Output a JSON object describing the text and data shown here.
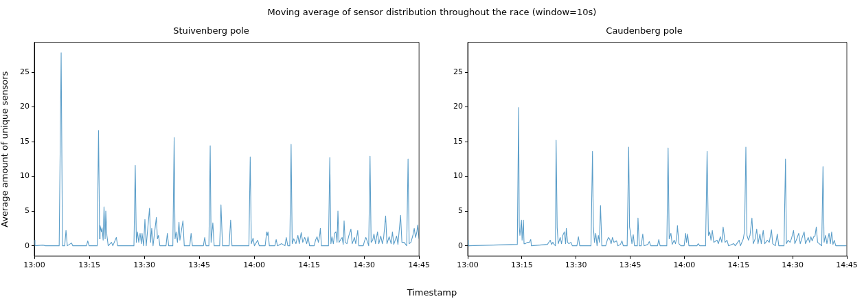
{
  "chart_data": [
    {
      "type": "line",
      "title": "Stuivenberg pole",
      "ylabel": "Average amount of unique sensors",
      "xlabel": "Timestamp",
      "annotations": [
        "Moving average of sensor distribution throughout the race (window=10s)"
      ],
      "xlim": [
        13,
        14.75
      ],
      "xticks": [
        {
          "value": 13,
          "label": "13:00"
        },
        {
          "value": 13.25,
          "label": "13:15"
        },
        {
          "value": 13.5,
          "label": "13:30"
        },
        {
          "value": 13.75,
          "label": "13:45"
        },
        {
          "value": 14,
          "label": "14:00"
        },
        {
          "value": 14.25,
          "label": "14:15"
        },
        {
          "value": 14.5,
          "label": "14:30"
        },
        {
          "value": 14.75,
          "label": "14:45"
        }
      ],
      "ylim": [
        -1.5,
        29.3
      ],
      "yticks": [
        0,
        5,
        10,
        15,
        20,
        25
      ],
      "grid": false,
      "legend": false,
      "marker": "none",
      "line_style": "solid",
      "series": [
        {
          "color": "#5b9ec9",
          "x": [
            13.0,
            13.003,
            13.039,
            13.051,
            13.113,
            13.122,
            13.128,
            13.138,
            13.144,
            13.15,
            13.169,
            13.175,
            13.237,
            13.243,
            13.249,
            13.286,
            13.292,
            13.297,
            13.299,
            13.305,
            13.308,
            13.313,
            13.317,
            13.322,
            13.325,
            13.33,
            13.336,
            13.351,
            13.357,
            13.373,
            13.379,
            13.453,
            13.459,
            13.464,
            13.469,
            13.475,
            13.481,
            13.487,
            13.49,
            13.497,
            13.503,
            13.509,
            13.524,
            13.529,
            13.534,
            13.54,
            13.555,
            13.56,
            13.565,
            13.571,
            13.599,
            13.605,
            13.611,
            13.63,
            13.636,
            13.64,
            13.645,
            13.651,
            13.658,
            13.662,
            13.676,
            13.682,
            13.707,
            13.713,
            13.719,
            13.769,
            13.775,
            13.781,
            13.794,
            13.8,
            13.804,
            13.812,
            13.818,
            13.843,
            13.849,
            13.856,
            13.886,
            13.893,
            13.899,
            13.976,
            13.982,
            13.987,
            13.995,
            14.001,
            14.016,
            14.023,
            14.05,
            14.057,
            14.06,
            14.063,
            14.069,
            14.094,
            14.1,
            14.106,
            14.125,
            14.14,
            14.146,
            14.153,
            14.162,
            14.168,
            14.173,
            14.18,
            14.19,
            14.199,
            14.205,
            14.214,
            14.221,
            14.23,
            14.239,
            14.245,
            14.252,
            14.273,
            14.279,
            14.286,
            14.292,
            14.298,
            14.301,
            14.306,
            14.338,
            14.344,
            14.349,
            14.354,
            14.36,
            14.366,
            14.372,
            14.377,
            14.381,
            14.386,
            14.4,
            14.405,
            14.409,
            14.414,
            14.422,
            14.431,
            14.44,
            14.446,
            14.456,
            14.462,
            14.471,
            14.476,
            14.496,
            14.502,
            14.508,
            14.515,
            14.521,
            14.527,
            14.532,
            14.539,
            14.545,
            14.552,
            14.561,
            14.567,
            14.576,
            14.583,
            14.589,
            14.598,
            14.604,
            14.614,
            14.623,
            14.629,
            14.635,
            14.648,
            14.654,
            14.666,
            14.672,
            14.682,
            14.694,
            14.7,
            14.705,
            14.713,
            14.722,
            14.728,
            14.734,
            14.74,
            14.744,
            14.75
          ],
          "values": [
            0.8,
            0,
            0.1,
            0,
            0,
            27.8,
            0,
            0,
            2.2,
            0,
            0.4,
            0,
            0,
            0.7,
            0,
            0,
            16.6,
            1,
            2.9,
            2,
            2.6,
            0.8,
            5.6,
            1,
            5,
            1.5,
            0,
            0.5,
            0,
            1.2,
            0,
            0,
            11.6,
            0.5,
            2,
            0.5,
            1.8,
            0.3,
            1.8,
            0,
            3.8,
            0,
            5.4,
            0.5,
            2.5,
            0,
            4.1,
            1,
            1.5,
            0,
            0,
            1.8,
            0,
            0,
            15.6,
            1,
            2,
            0.5,
            3.4,
            0.8,
            3.6,
            0,
            0,
            1.8,
            0,
            0,
            1.2,
            0,
            0,
            14.4,
            0.5,
            3.3,
            0,
            0,
            5.9,
            0,
            0,
            3.7,
            0,
            0,
            12.8,
            0.3,
            1.1,
            0,
            0.8,
            0,
            0,
            2,
            1.5,
            2,
            0,
            0,
            0.9,
            0,
            0.3,
            0,
            1.2,
            0,
            0,
            14.6,
            0.3,
            1,
            0.3,
            1.5,
            0.3,
            1.9,
            0.5,
            1.2,
            0.3,
            1.3,
            0,
            0,
            0.8,
            1.3,
            0.5,
            1.5,
            2.5,
            0,
            0,
            12.7,
            0.3,
            1.3,
            0.3,
            1.8,
            2,
            0.5,
            5,
            0.5,
            1.2,
            0.2,
            3.6,
            0.5,
            0.3,
            1.5,
            2.4,
            0.3,
            1.2,
            0.3,
            2.2,
            0,
            0,
            0.7,
            1.2,
            0.6,
            0,
            12.9,
            0.5,
            0.8,
            1.7,
            0.3,
            2,
            0.3,
            1.4,
            0.3,
            1.2,
            4.3,
            0.3,
            1.3,
            0.3,
            2,
            0.2,
            1.4,
            0.2,
            4.4,
            0.5,
            0.5,
            0,
            12.5,
            0.3,
            0.5,
            1.5,
            2.5,
            1.2,
            2,
            3,
            1
          ]
        }
      ]
    },
    {
      "type": "line",
      "title": "Caudenberg pole",
      "xlim": [
        13,
        14.75
      ],
      "xticks": [
        {
          "value": 13,
          "label": "13:00"
        },
        {
          "value": 13.25,
          "label": "13:15"
        },
        {
          "value": 13.5,
          "label": "13:30"
        },
        {
          "value": 13.75,
          "label": "13:45"
        },
        {
          "value": 14,
          "label": "14:00"
        },
        {
          "value": 14.25,
          "label": "14:15"
        },
        {
          "value": 14.5,
          "label": "14:30"
        },
        {
          "value": 14.75,
          "label": "14:45"
        }
      ],
      "ylim": [
        -1.5,
        29.3
      ],
      "yticks": [
        0,
        5,
        10,
        15,
        20,
        25
      ],
      "grid": false,
      "legend": false,
      "marker": "none",
      "line_style": "solid",
      "series": [
        {
          "color": "#5b9ec9",
          "x": [
            13.0,
            13.003,
            13.229,
            13.235,
            13.238,
            13.241,
            13.248,
            13.251,
            13.257,
            13.26,
            13.266,
            13.275,
            13.285,
            13.291,
            13.294,
            13.368,
            13.381,
            13.387,
            13.393,
            13.399,
            13.405,
            13.408,
            13.413,
            13.418,
            13.427,
            13.433,
            13.439,
            13.446,
            13.452,
            13.455,
            13.461,
            13.467,
            13.476,
            13.483,
            13.504,
            13.511,
            13.517,
            13.569,
            13.576,
            13.58,
            13.585,
            13.591,
            13.597,
            13.603,
            13.608,
            13.613,
            13.619,
            13.637,
            13.644,
            13.65,
            13.656,
            13.662,
            13.668,
            13.675,
            13.687,
            13.693,
            13.705,
            13.712,
            13.718,
            13.736,
            13.743,
            13.747,
            13.752,
            13.758,
            13.764,
            13.77,
            13.783,
            13.786,
            13.792,
            13.801,
            13.808,
            13.814,
            13.832,
            13.838,
            13.845,
            13.876,
            13.882,
            13.888,
            13.919,
            13.925,
            13.93,
            13.938,
            13.944,
            13.953,
            13.959,
            13.965,
            13.968,
            13.975,
            13.984,
            13.999,
            14.006,
            14.01,
            14.015,
            14.021,
            14.058,
            14.064,
            14.071,
            14.098,
            14.105,
            14.111,
            14.117,
            14.123,
            14.129,
            14.136,
            14.151,
            14.157,
            14.166,
            14.173,
            14.179,
            14.188,
            14.197,
            14.204,
            14.228,
            14.235,
            14.253,
            14.259,
            14.272,
            14.278,
            14.284,
            14.289,
            14.296,
            14.303,
            14.312,
            14.318,
            14.327,
            14.334,
            14.34,
            14.349,
            14.355,
            14.364,
            14.371,
            14.383,
            14.392,
            14.402,
            14.408,
            14.42,
            14.429,
            14.436,
            14.46,
            14.467,
            14.471,
            14.479,
            14.488,
            14.494,
            14.504,
            14.51,
            14.519,
            14.528,
            14.535,
            14.544,
            14.553,
            14.559,
            14.572,
            14.578,
            14.584,
            14.59,
            14.597,
            14.603,
            14.609,
            14.615,
            14.634,
            14.64,
            14.645,
            14.652,
            14.658,
            14.668,
            14.674,
            14.68,
            14.686,
            14.692,
            14.699,
            14.748
          ],
          "values": [
            0.8,
            0,
            0.2,
            19.9,
            2.7,
            1.5,
            3.7,
            0.8,
            3.7,
            0.3,
            0.3,
            0.5,
            0.5,
            0.9,
            0,
            0.2,
            0.8,
            0.2,
            0.5,
            0.2,
            0,
            15.2,
            2.6,
            0.3,
            1.2,
            0.3,
            1.5,
            2,
            0.3,
            2.5,
            0.5,
            0.3,
            0.5,
            0,
            0,
            1.3,
            0,
            0,
            13.6,
            2.8,
            0.5,
            1.8,
            0,
            1.5,
            0.5,
            5.8,
            0,
            0,
            0.8,
            1.2,
            0.9,
            0.3,
            1.2,
            0.5,
            0.7,
            0,
            0.2,
            0.7,
            0,
            0,
            14.2,
            2.7,
            1.8,
            0.3,
            1.6,
            0,
            0,
            4,
            0,
            0,
            1.7,
            0,
            0.2,
            0.6,
            0,
            0,
            0.9,
            0,
            0,
            14.1,
            1,
            1.8,
            0.2,
            0.8,
            0.3,
            1.2,
            2.9,
            0.3,
            0,
            0,
            1.8,
            0.5,
            1.7,
            0,
            0,
            0.3,
            0,
            0,
            13.6,
            1.5,
            2,
            0.8,
            2.2,
            0.5,
            0.8,
            0.3,
            1.3,
            0.5,
            2.7,
            0.5,
            0.8,
            0,
            0.3,
            0,
            0.8,
            0,
            1,
            2.1,
            14.2,
            1.5,
            0.8,
            1.5,
            4,
            0.3,
            1,
            2.4,
            0.3,
            1.7,
            0.3,
            2.2,
            0.3,
            0.8,
            0.5,
            2.3,
            0.3,
            0,
            1.7,
            0,
            0,
            12.5,
            0.3,
            0.8,
            0.5,
            1,
            2.2,
            0.3,
            1,
            1.8,
            0.3,
            1.2,
            2,
            0.3,
            1.2,
            0.5,
            1.3,
            0.7,
            1.3,
            1.4,
            2.7,
            0.5,
            0,
            11.4,
            0.5,
            1.5,
            0.3,
            1.8,
            0.3,
            2,
            0.2,
            0.8,
            0,
            0
          ]
        }
      ]
    }
  ]
}
